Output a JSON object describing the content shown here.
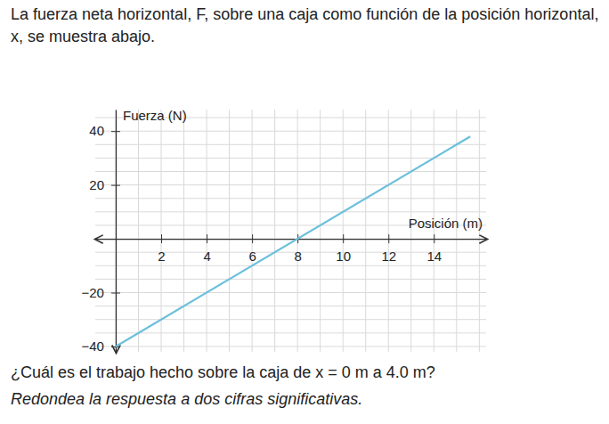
{
  "intro": "La fuerza neta horizontal, F, sobre una caja como función de la posición horizontal, x, se muestra abajo.",
  "chart_data": {
    "type": "line",
    "x_label": "Posición (m)",
    "y_label": "Fuerza (N)",
    "x": [
      0,
      15.6
    ],
    "values": [
      -40,
      38
    ],
    "color": "#6cc0dc",
    "xlim": [
      -0.9,
      16.3
    ],
    "ylim": [
      -42,
      48
    ],
    "xticks": [
      2,
      4,
      6,
      8,
      10,
      12,
      14
    ],
    "yticks": [
      {
        "value": -40,
        "label": "−40"
      },
      {
        "value": -20,
        "label": "−20"
      },
      20,
      40
    ],
    "grid": true
  },
  "question": "¿Cuál es el trabajo hecho sobre la caja de x = 0 m a 4.0 m?",
  "instruction": "Redondea la respuesta a dos cifras significativas."
}
